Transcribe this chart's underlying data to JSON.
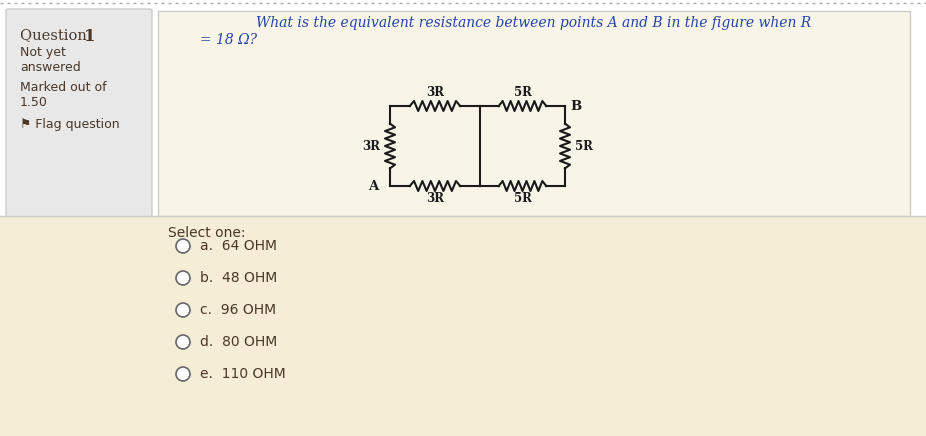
{
  "bg_outer": "#ffffff",
  "bg_left_panel": "#e8e8e8",
  "bg_right_panel": "#f5edd6",
  "bg_white_box": "#f8f4e8",
  "question_text_line1": "What is the equivalent resistance between points A and B in the figure when R",
  "question_text_line2": "= 18 Ω?",
  "select_one": "Select one:",
  "options": [
    "a.  64 OHM",
    "b.  48 OHM",
    "c.  96 OHM",
    "d.  80 OHM",
    "e.  110 OHM"
  ],
  "text_color_dark": "#4a3728",
  "circuit_color": "#1a1a1a",
  "panel_border": "#cccccc",
  "question_color": "#2244aa",
  "xl": 390,
  "xm": 480,
  "xr": 565,
  "yt": 330,
  "yb": 250,
  "circuit_lw": 1.5
}
